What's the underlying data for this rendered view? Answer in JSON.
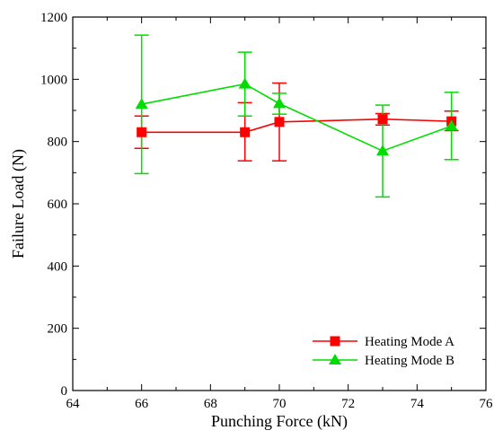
{
  "chart_data": {
    "type": "line",
    "xlabel": "Punching Force (kN)",
    "ylabel": "Failure Load (N)",
    "xlim": [
      64,
      76
    ],
    "ylim": [
      0,
      1200
    ],
    "xticks": [
      64,
      66,
      68,
      70,
      72,
      74,
      76
    ],
    "yticks": [
      0,
      200,
      400,
      600,
      800,
      1000,
      1200
    ],
    "grid": false,
    "legend_position": "bottom-right",
    "series": [
      {
        "name": "Heating Mode A",
        "color": "#ff0000",
        "marker": "square",
        "x": [
          66,
          69,
          70,
          73,
          75
        ],
        "y": [
          830,
          830,
          863,
          872,
          865
        ],
        "err_low": [
          778,
          738,
          738,
          853,
          835
        ],
        "err_high": [
          882,
          925,
          988,
          890,
          898
        ]
      },
      {
        "name": "Heating Mode B",
        "color": "#00dd00",
        "marker": "triangle",
        "x": [
          66,
          69,
          70,
          73,
          75
        ],
        "y": [
          920,
          985,
          922,
          770,
          850
        ],
        "err_low": [
          697,
          882,
          888,
          622,
          742
        ],
        "err_high": [
          1142,
          1087,
          955,
          917,
          958
        ]
      }
    ]
  }
}
